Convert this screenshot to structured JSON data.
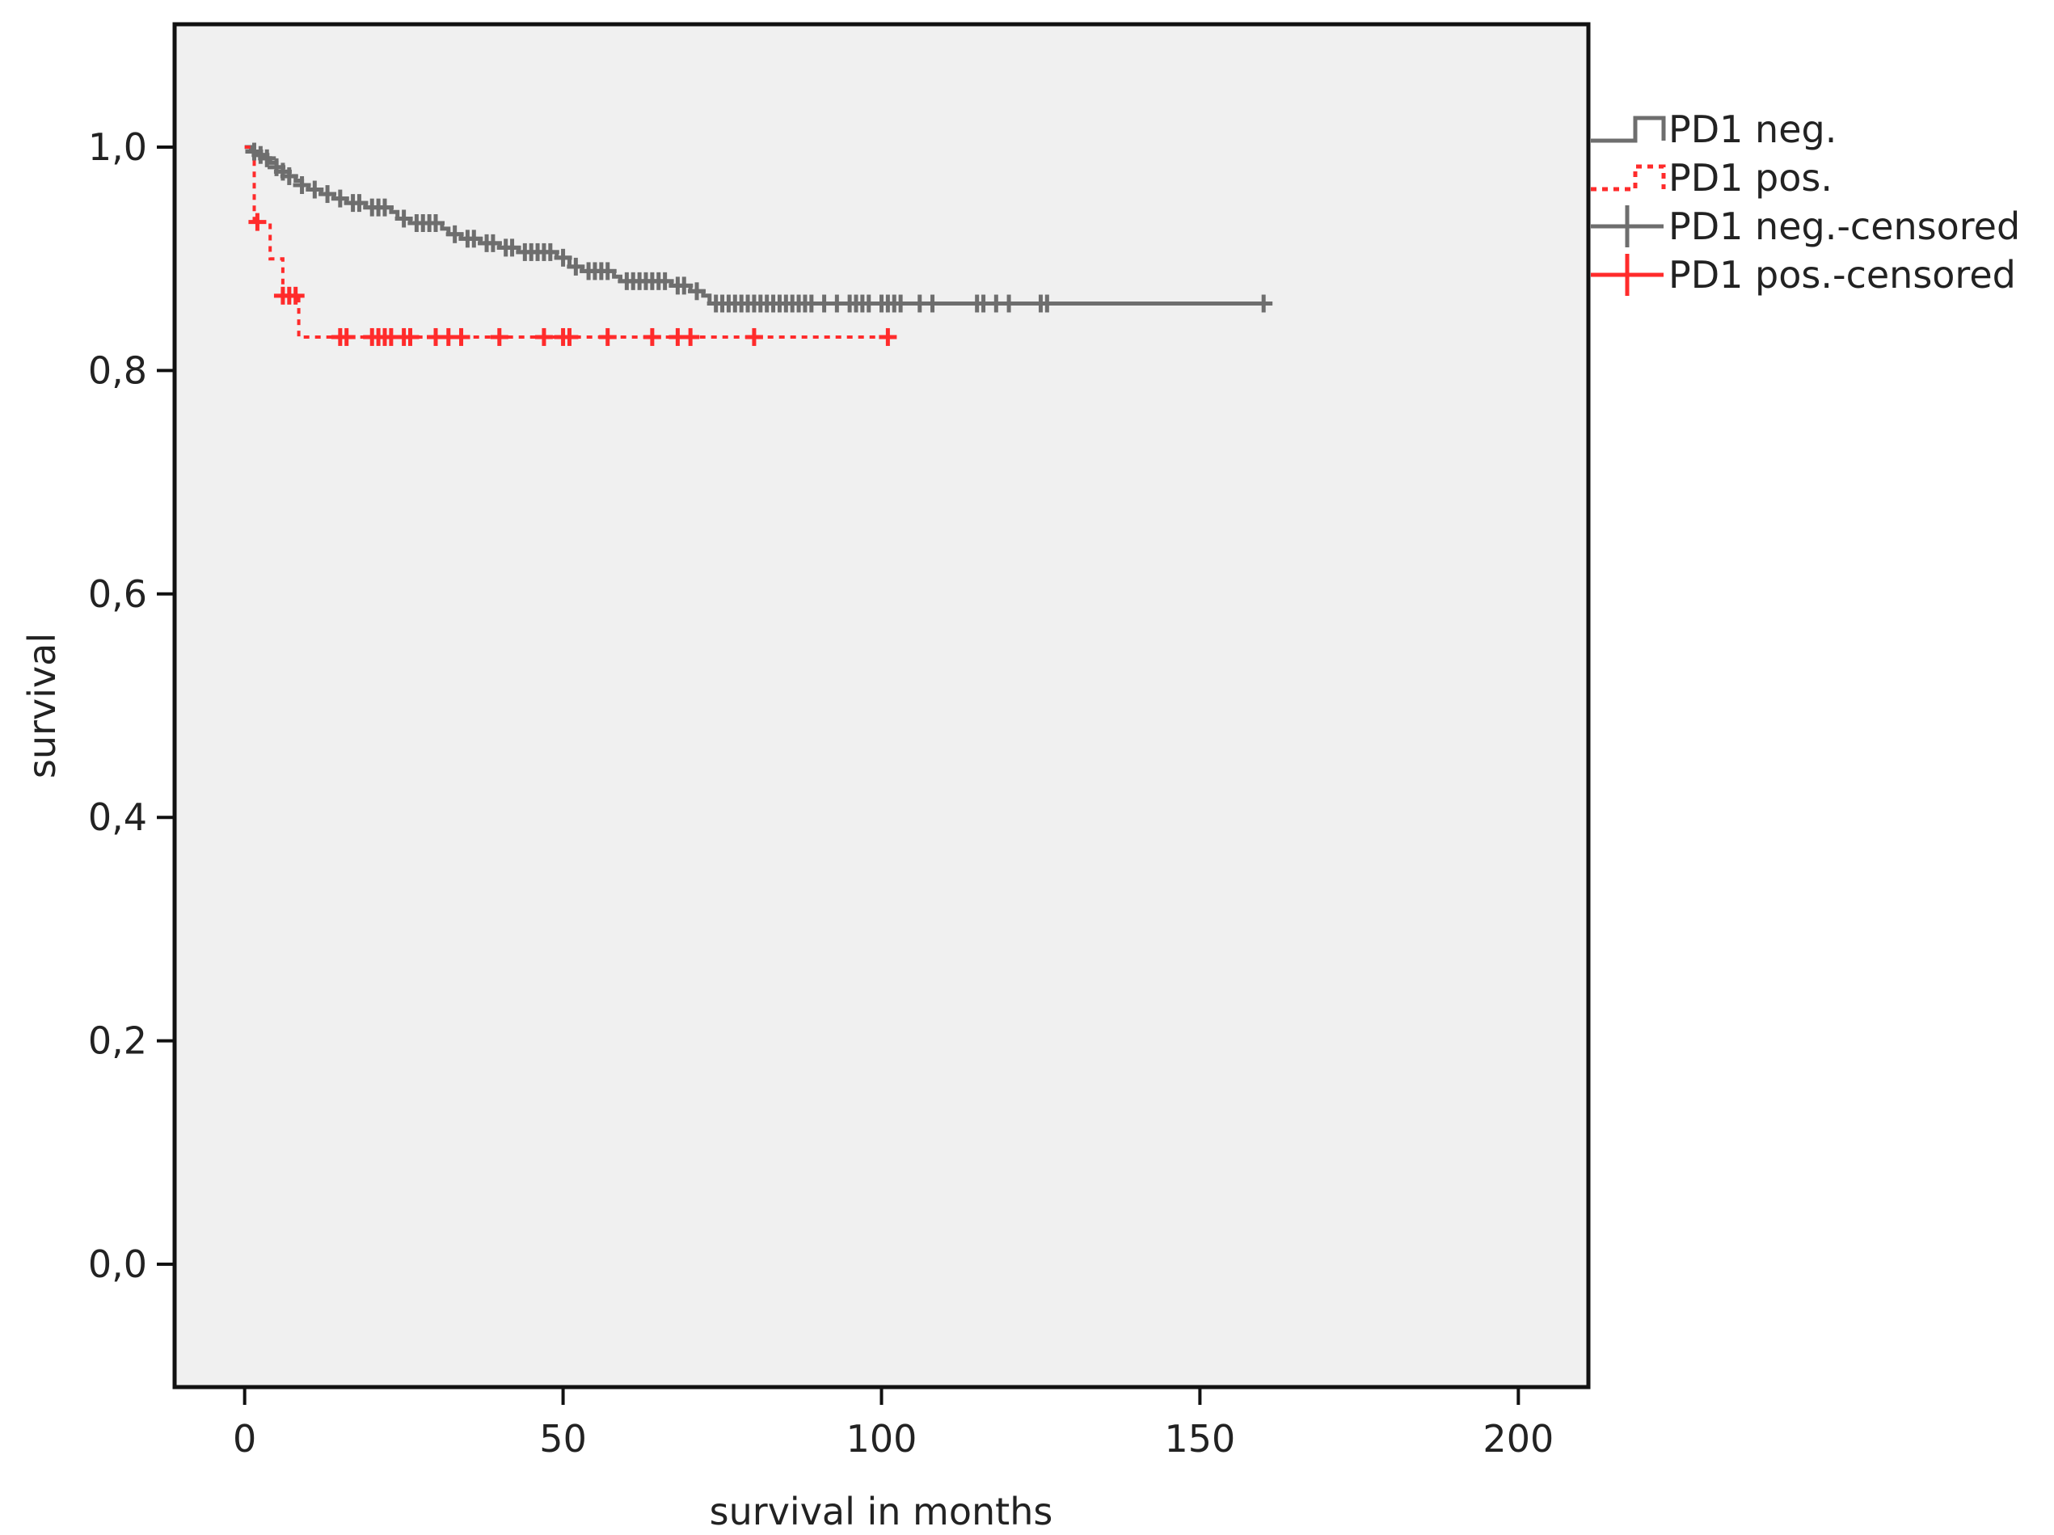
{
  "chart_data": {
    "type": "line",
    "subtype": "kaplan-meier step",
    "title": "",
    "xlabel": "survival in months",
    "ylabel": "survival",
    "xlim": [
      -11,
      211
    ],
    "ylim": [
      -0.11,
      1.11
    ],
    "x_ticks": [
      0,
      50,
      100,
      150,
      200
    ],
    "x_tick_labels": [
      "0",
      "50",
      "100",
      "150",
      "200"
    ],
    "y_ticks": [
      0.0,
      0.2,
      0.4,
      0.6,
      0.8,
      1.0
    ],
    "y_tick_labels": [
      "0,0",
      "0,2",
      "0,4",
      "0,6",
      "0,8",
      "1,0"
    ],
    "grid": false,
    "legend_position": "outside-right-top",
    "plot_background": "#f0f0f0",
    "series": [
      {
        "name": "PD1 neg.",
        "color": "#6e6e6e",
        "dash": "solid",
        "steps": [
          [
            0,
            1.0
          ],
          [
            1,
            0.996
          ],
          [
            2,
            0.993
          ],
          [
            3,
            0.99
          ],
          [
            4,
            0.986
          ],
          [
            5,
            0.982
          ],
          [
            6,
            0.978
          ],
          [
            7,
            0.974
          ],
          [
            8,
            0.97
          ],
          [
            9,
            0.966
          ],
          [
            10,
            0.962
          ],
          [
            12,
            0.958
          ],
          [
            14,
            0.954
          ],
          [
            16,
            0.95
          ],
          [
            19,
            0.946
          ],
          [
            23,
            0.942
          ],
          [
            24,
            0.936
          ],
          [
            26,
            0.932
          ],
          [
            31,
            0.927
          ],
          [
            32,
            0.922
          ],
          [
            34,
            0.918
          ],
          [
            37,
            0.914
          ],
          [
            40,
            0.91
          ],
          [
            43,
            0.906
          ],
          [
            49,
            0.901
          ],
          [
            51,
            0.893
          ],
          [
            53,
            0.889
          ],
          [
            58,
            0.884
          ],
          [
            59,
            0.88
          ],
          [
            67,
            0.876
          ],
          [
            70,
            0.871
          ],
          [
            72,
            0.867
          ],
          [
            73,
            0.86
          ]
        ],
        "end_x": 160,
        "censored_x": [
          1.5,
          2.5,
          3.5,
          5,
          6,
          7,
          9,
          11,
          13,
          15,
          17,
          18,
          20,
          21,
          22,
          25,
          27,
          28,
          29,
          30,
          33,
          35,
          36,
          38,
          39,
          41,
          42,
          44,
          45,
          46,
          47,
          48,
          50,
          52,
          54,
          55,
          56,
          57,
          60,
          61,
          62,
          63,
          64,
          65,
          66,
          68,
          69,
          71,
          74,
          75,
          76,
          77,
          78,
          79,
          80,
          81,
          82,
          83,
          84,
          85,
          86,
          87,
          88,
          89,
          91,
          93,
          95,
          96,
          97,
          98,
          100,
          101,
          102,
          103,
          106,
          108,
          115,
          116,
          118,
          120,
          125,
          126,
          160
        ]
      },
      {
        "name": "PD1 pos.",
        "color": "#ff2b2b",
        "dash": "dotted",
        "steps": [
          [
            0,
            1.0
          ],
          [
            1.5,
            0.933
          ],
          [
            4,
            0.9
          ],
          [
            6,
            0.867
          ],
          [
            8.5,
            0.83
          ]
        ],
        "end_x": 101,
        "censored_x": [
          2,
          6,
          7,
          8,
          15,
          16,
          20,
          21,
          22,
          23,
          25,
          26,
          30,
          32,
          34,
          40,
          47,
          50,
          51,
          57,
          64,
          68,
          70,
          80,
          101
        ]
      }
    ],
    "legend": [
      {
        "label": "PD1 neg.",
        "kind": "step",
        "color": "#6e6e6e",
        "dash": "solid"
      },
      {
        "label": "PD1 pos.",
        "kind": "step",
        "color": "#ff2b2b",
        "dash": "dotted"
      },
      {
        "label": "PD1 neg.-censored",
        "kind": "cross",
        "color": "#6e6e6e"
      },
      {
        "label": "PD1 pos.-censored",
        "kind": "cross",
        "color": "#ff2b2b"
      }
    ]
  }
}
